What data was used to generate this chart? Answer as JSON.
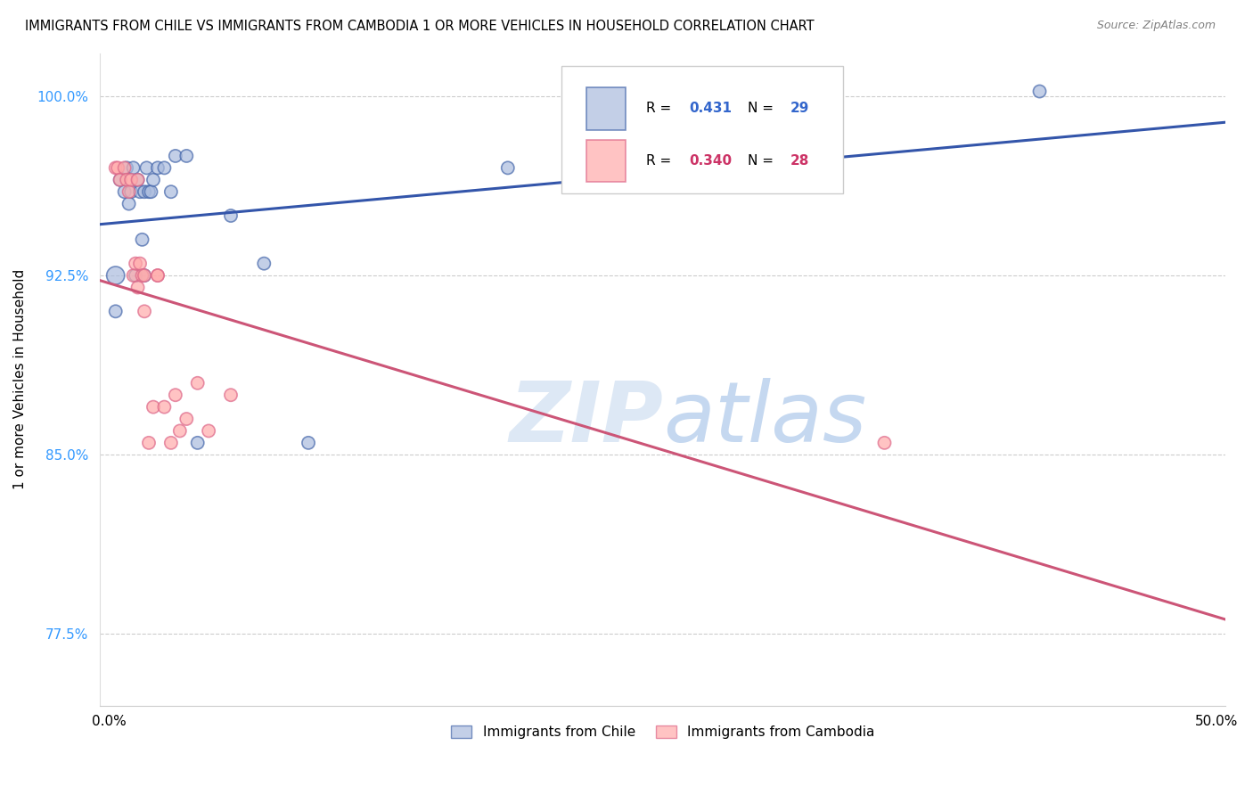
{
  "title": "IMMIGRANTS FROM CHILE VS IMMIGRANTS FROM CAMBODIA 1 OR MORE VEHICLES IN HOUSEHOLD CORRELATION CHART",
  "source": "Source: ZipAtlas.com",
  "ylabel": "1 or more Vehicles in Household",
  "ytick_vals": [
    0.775,
    0.85,
    0.925,
    1.0
  ],
  "ytick_labels": [
    "77.5%",
    "85.0%",
    "92.5%",
    "100.0%"
  ],
  "ylim": [
    0.745,
    1.018
  ],
  "xlim": [
    -0.004,
    0.504
  ],
  "watermark_zip": "ZIP",
  "watermark_atlas": "atlas",
  "legend_blue_Rval": "0.431",
  "legend_blue_Nval": "29",
  "legend_pink_Rval": "0.340",
  "legend_pink_Nval": "28",
  "color_blue_fill": "#aabbdd",
  "color_blue_edge": "#4466aa",
  "color_pink_fill": "#ffaaaa",
  "color_pink_edge": "#dd6688",
  "color_blue_line": "#3355aa",
  "color_pink_line": "#cc5577",
  "chile_x": [
    0.003,
    0.005,
    0.007,
    0.008,
    0.009,
    0.01,
    0.011,
    0.012,
    0.013,
    0.014,
    0.015,
    0.016,
    0.016,
    0.017,
    0.018,
    0.019,
    0.02,
    0.022,
    0.025,
    0.028,
    0.03,
    0.035,
    0.04,
    0.055,
    0.07,
    0.09,
    0.18,
    0.42,
    0.003
  ],
  "chile_y": [
    0.925,
    0.965,
    0.96,
    0.97,
    0.955,
    0.96,
    0.97,
    0.925,
    0.965,
    0.96,
    0.94,
    0.96,
    0.925,
    0.97,
    0.96,
    0.96,
    0.965,
    0.97,
    0.97,
    0.96,
    0.975,
    0.975,
    0.855,
    0.95,
    0.93,
    0.855,
    0.97,
    1.002,
    0.91
  ],
  "chile_size": [
    60,
    30,
    30,
    30,
    30,
    30,
    30,
    30,
    30,
    30,
    30,
    30,
    30,
    30,
    30,
    30,
    30,
    30,
    30,
    30,
    30,
    30,
    30,
    30,
    30,
    30,
    30,
    30,
    30
  ],
  "cambodia_x": [
    0.003,
    0.004,
    0.005,
    0.007,
    0.008,
    0.009,
    0.01,
    0.011,
    0.012,
    0.013,
    0.013,
    0.014,
    0.015,
    0.016,
    0.016,
    0.018,
    0.02,
    0.022,
    0.022,
    0.025,
    0.028,
    0.03,
    0.032,
    0.035,
    0.04,
    0.045,
    0.055,
    0.35
  ],
  "cambodia_y": [
    0.97,
    0.97,
    0.965,
    0.97,
    0.965,
    0.96,
    0.965,
    0.925,
    0.93,
    0.92,
    0.965,
    0.93,
    0.925,
    0.925,
    0.91,
    0.855,
    0.87,
    0.925,
    0.925,
    0.87,
    0.855,
    0.875,
    0.86,
    0.865,
    0.88,
    0.86,
    0.875,
    0.855
  ],
  "cambodia_size": [
    30,
    30,
    30,
    30,
    30,
    30,
    30,
    30,
    30,
    30,
    30,
    30,
    30,
    30,
    30,
    30,
    30,
    30,
    30,
    30,
    30,
    30,
    30,
    30,
    30,
    30,
    30,
    30
  ]
}
